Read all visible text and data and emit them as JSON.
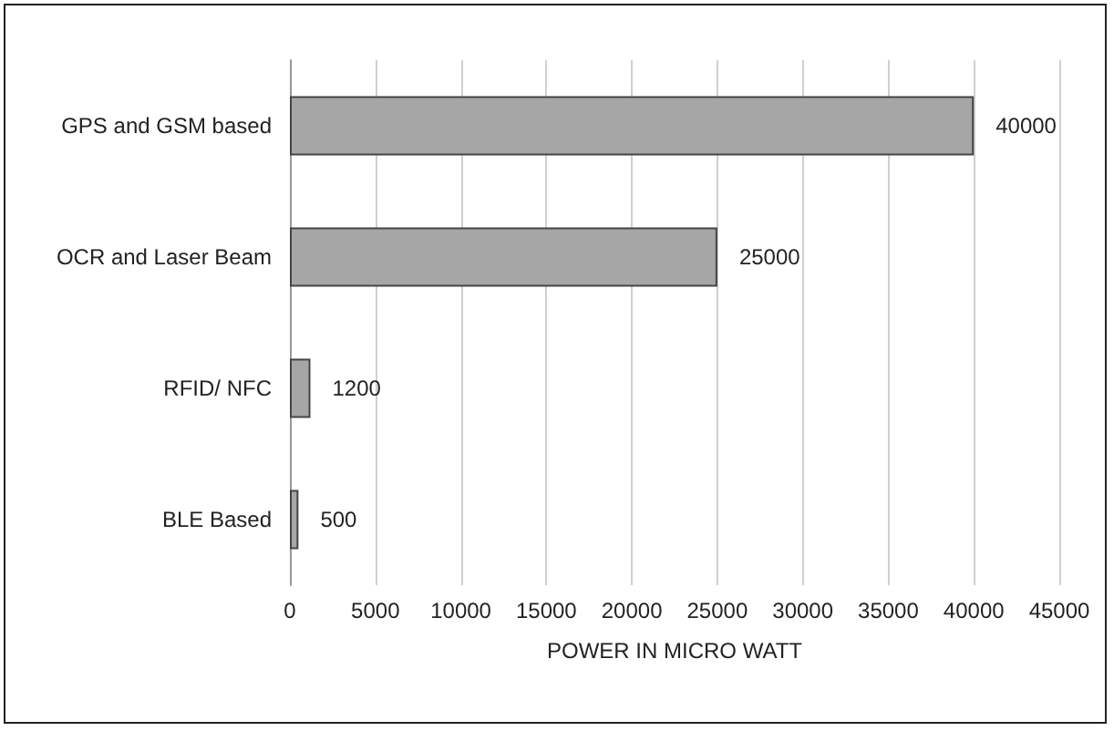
{
  "chart_data": {
    "type": "bar",
    "orientation": "horizontal",
    "categories": [
      "GPS and GSM based",
      "OCR and Laser Beam",
      "RFID/ NFC",
      "BLE Based"
    ],
    "values": [
      40000,
      25000,
      1200,
      500
    ],
    "color": "#a6a6a6",
    "xlabel": "POWER IN MICRO WATT",
    "xlim": [
      0,
      45000
    ],
    "xticks": [
      0,
      5000,
      10000,
      15000,
      20000,
      25000,
      30000,
      35000,
      40000,
      45000
    ],
    "grid": "x",
    "data_labels": true
  }
}
